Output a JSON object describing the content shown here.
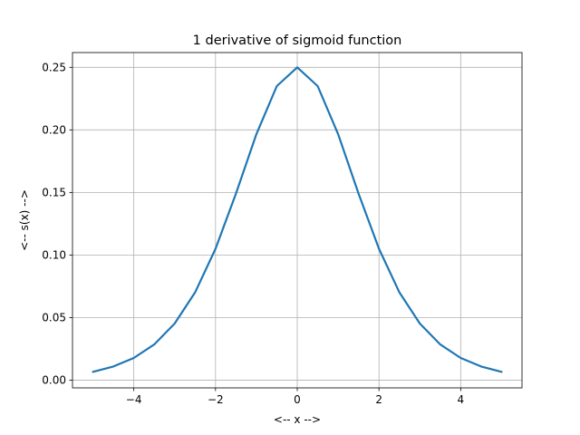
{
  "chart_data": {
    "type": "line",
    "title": "1 derivative of sigmoid function",
    "xlabel": "<-- x -->",
    "ylabel": "<-- s(x) -->",
    "xlim": [
      -5.5,
      5.5
    ],
    "ylim": [
      -0.0062,
      0.2618
    ],
    "x_ticks": [
      -4,
      -2,
      0,
      2,
      4
    ],
    "x_tick_labels": [
      "−4",
      "−2",
      "0",
      "2",
      "4"
    ],
    "y_ticks": [
      0.0,
      0.05,
      0.1,
      0.15,
      0.2,
      0.25
    ],
    "y_tick_labels": [
      "0.00",
      "0.05",
      "0.10",
      "0.15",
      "0.20",
      "0.25"
    ],
    "grid": true,
    "series": [
      {
        "color": "#1f77b4",
        "x": [
          -5.0,
          -4.5,
          -4.0,
          -3.5,
          -3.0,
          -2.5,
          -2.0,
          -1.5,
          -1.0,
          -0.5,
          0.0,
          0.5,
          1.0,
          1.5,
          2.0,
          2.5,
          3.0,
          3.5,
          4.0,
          4.5,
          5.0
        ],
        "y": [
          0.0066,
          0.0109,
          0.0177,
          0.0285,
          0.0452,
          0.0701,
          0.105,
          0.1491,
          0.1966,
          0.235,
          0.25,
          0.235,
          0.1966,
          0.1491,
          0.105,
          0.0701,
          0.0452,
          0.0285,
          0.0177,
          0.0109,
          0.0066
        ]
      }
    ]
  }
}
